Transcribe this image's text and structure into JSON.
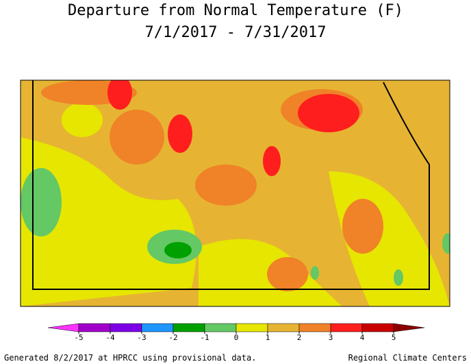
{
  "title": [
    "Departure from Normal Temperature (F)",
    "7/1/2017 - 7/31/2017"
  ],
  "legend": {
    "ticks": [
      -5,
      -4,
      -3,
      -2,
      -1,
      0,
      1,
      2,
      3,
      4,
      5
    ],
    "colors": [
      "#ff33ff",
      "#a000c8",
      "#7d00e6",
      "#1e96ff",
      "#00a000",
      "#64c864",
      "#e6e600",
      "#e6b432",
      "#f08228",
      "#ff1e1e",
      "#c80000",
      "#8c0000"
    ]
  },
  "footer": {
    "left": "Generated 8/2/2017 at HPRCC using provisional data.",
    "right": "Regional Climate Centers"
  }
}
